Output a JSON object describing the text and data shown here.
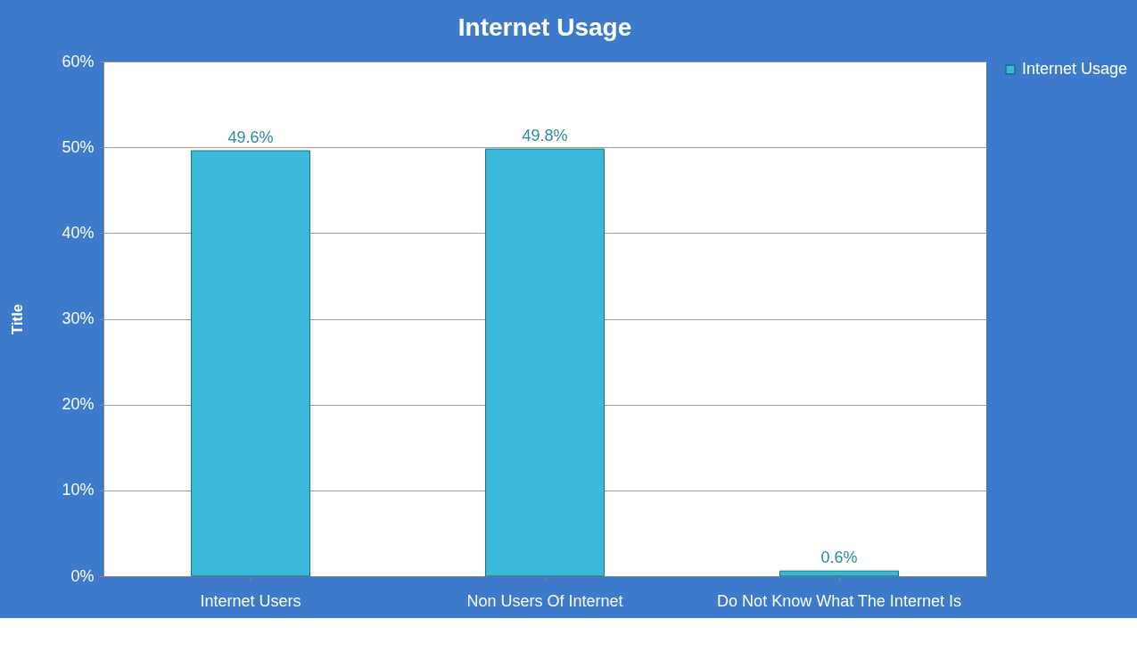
{
  "chart_data": {
    "type": "bar",
    "title": "Internet Usage",
    "ylabel": "Title",
    "categories": [
      "Internet Users",
      "Non Users Of Internet",
      "Do Not Know What The Internet Is"
    ],
    "series": [
      {
        "name": "Internet Usage",
        "color": "#3bb9da",
        "values": [
          49.6,
          49.8,
          0.6
        ],
        "value_labels": [
          "49.6%",
          "49.8%",
          "0.6%"
        ]
      }
    ],
    "ylim": [
      0,
      60
    ],
    "yticks": [
      {
        "value": 0,
        "label": "0%"
      },
      {
        "value": 10,
        "label": "10%"
      },
      {
        "value": 20,
        "label": "20%"
      },
      {
        "value": 30,
        "label": "30%"
      },
      {
        "value": 40,
        "label": "40%"
      },
      {
        "value": 50,
        "label": "50%"
      },
      {
        "value": 60,
        "label": "60%"
      }
    ],
    "grid": "y",
    "legend": "right"
  }
}
